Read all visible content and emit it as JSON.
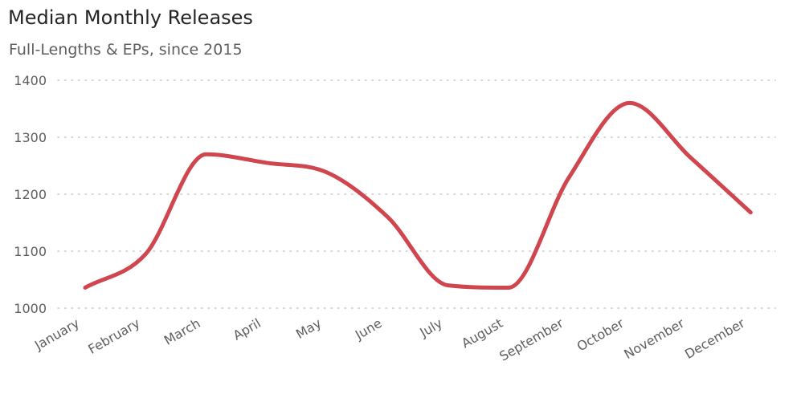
{
  "chart": {
    "title": "Median Monthly Releases",
    "subtitle": "Full-Lengths & EPs, since 2015"
  },
  "chart_data": {
    "type": "line",
    "title": "Median Monthly Releases",
    "subtitle": "Full-Lengths & EPs, since 2015",
    "xlabel": "",
    "ylabel": "",
    "categories": [
      "January",
      "February",
      "March",
      "April",
      "May",
      "June",
      "July",
      "August",
      "September",
      "October",
      "November",
      "December"
    ],
    "series": [
      {
        "values": [
          1036,
          1095,
          1270,
          1255,
          1238,
          1160,
          1040,
          1036,
          1230,
          1360,
          1265,
          1168
        ]
      }
    ],
    "yticks": [
      1000,
      1100,
      1200,
      1300,
      1400
    ],
    "ylim": [
      1000,
      1400
    ],
    "grid": "horizontal dotted",
    "line_color": "#d0464f",
    "grid_color": "#c8c8c8",
    "text_color": "#605e5c"
  }
}
